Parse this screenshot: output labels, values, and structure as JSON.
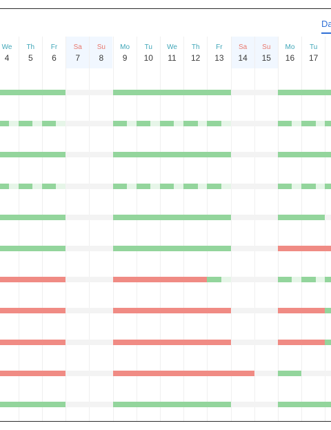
{
  "view_tab": {
    "label": "Da"
  },
  "colors": {
    "green": "#93d59c",
    "light_green": "#e6f5e8",
    "red": "#f08b84",
    "gray": "#f3f3f3",
    "accent": "#2f6fd6",
    "weekday_text": "#3fa6b8",
    "weekend_text": "#e8786e"
  },
  "days": [
    {
      "wd": "We",
      "num": "4",
      "weekend": false
    },
    {
      "wd": "Th",
      "num": "5",
      "weekend": false
    },
    {
      "wd": "Fr",
      "num": "6",
      "weekend": false
    },
    {
      "wd": "Sa",
      "num": "7",
      "weekend": true
    },
    {
      "wd": "Su",
      "num": "8",
      "weekend": true
    },
    {
      "wd": "Mo",
      "num": "9",
      "weekend": false
    },
    {
      "wd": "Tu",
      "num": "10",
      "weekend": false
    },
    {
      "wd": "We",
      "num": "11",
      "weekend": false
    },
    {
      "wd": "Th",
      "num": "12",
      "weekend": false
    },
    {
      "wd": "Fr",
      "num": "13",
      "weekend": false
    },
    {
      "wd": "Sa",
      "num": "14",
      "weekend": true
    },
    {
      "wd": "Su",
      "num": "15",
      "weekend": true
    },
    {
      "wd": "Mo",
      "num": "16",
      "weekend": false
    },
    {
      "wd": "Tu",
      "num": "17",
      "weekend": false
    },
    {
      "wd": "",
      "num": "",
      "weekend": false
    }
  ],
  "rows": [
    {
      "p": [
        "g",
        "g",
        "g",
        "x",
        "x",
        "g",
        "g",
        "g",
        "g",
        "g",
        "x",
        "x",
        "g",
        "g",
        "g"
      ]
    },
    {
      "p": [
        "gl",
        "gl",
        "gl",
        "x",
        "x",
        "gl",
        "gl",
        "gl",
        "gl",
        "gl",
        "x",
        "x",
        "gl",
        "gl",
        "gl"
      ]
    },
    {
      "p": [
        "g",
        "g",
        "g",
        "x",
        "x",
        "g",
        "g",
        "g",
        "g",
        "g",
        "x",
        "x",
        "g",
        "g",
        "g"
      ]
    },
    {
      "p": [
        "gl",
        "gl",
        "gl",
        "x",
        "x",
        "gl",
        "gl",
        "gl",
        "gl",
        "gl",
        "x",
        "x",
        "gl",
        "gl",
        "gl"
      ]
    },
    {
      "p": [
        "g",
        "g",
        "g",
        "x",
        "x",
        "g",
        "g",
        "g",
        "g",
        "g",
        "x",
        "x",
        "g",
        "g",
        "x"
      ]
    },
    {
      "p": [
        "g",
        "g",
        "g",
        "x",
        "x",
        "g",
        "g",
        "g",
        "g",
        "g",
        "x",
        "x",
        "r",
        "r",
        "r"
      ]
    },
    {
      "p": [
        "r",
        "r",
        "r",
        "x",
        "x",
        "r",
        "r",
        "r",
        "r",
        "gl",
        "x",
        "x",
        "gl",
        "gl",
        "gl"
      ]
    },
    {
      "p": [
        "r",
        "r",
        "r",
        "x",
        "x",
        "r",
        "r",
        "r",
        "r",
        "r",
        "x",
        "x",
        "r",
        "r",
        "g"
      ]
    },
    {
      "p": [
        "r",
        "r",
        "r",
        "x",
        "x",
        "r",
        "r",
        "r",
        "r",
        "r",
        "x",
        "x",
        "r",
        "r",
        "g"
      ]
    },
    {
      "p": [
        "r",
        "r",
        "r",
        "x",
        "x",
        "r",
        "r",
        "r",
        "r",
        "r",
        "r",
        "x",
        "g",
        "x",
        "x"
      ]
    },
    {
      "p": [
        "g",
        "g",
        "g",
        "x",
        "x",
        "g",
        "g",
        "g",
        "g",
        "g",
        "x",
        "x",
        "g",
        "g",
        "g"
      ]
    }
  ]
}
